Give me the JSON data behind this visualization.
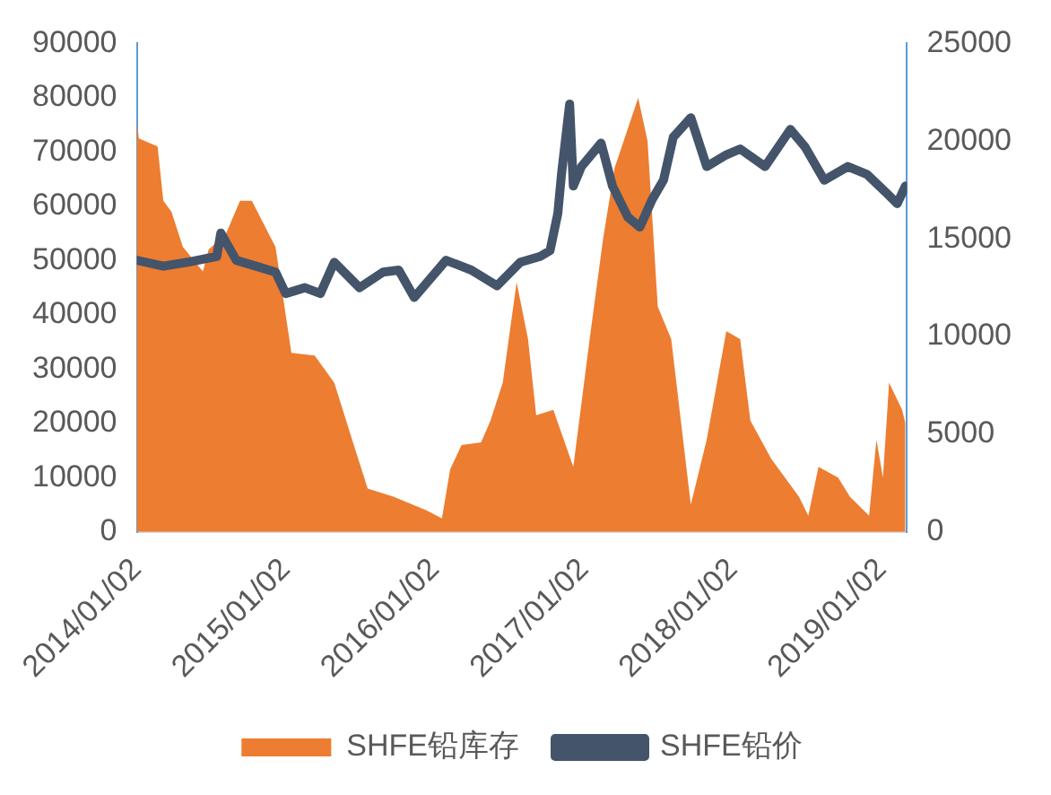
{
  "chart_data": {
    "type": "line",
    "xlim": [
      "2014-01-02",
      "2019-03-05"
    ],
    "xticks": [
      {
        "value": "2014-01-02",
        "label": "2014/01/02"
      },
      {
        "value": "2015-01-02",
        "label": "2015/01/02"
      },
      {
        "value": "2016-01-02",
        "label": "2016/01/02"
      },
      {
        "value": "2017-01-02",
        "label": "2017/01/02"
      },
      {
        "value": "2018-01-02",
        "label": "2018/01/02"
      },
      {
        "value": "2019-01-02",
        "label": "2019/01/02"
      }
    ],
    "ylim": [
      0,
      90000
    ],
    "yticks": [
      0,
      10000,
      20000,
      30000,
      40000,
      50000,
      60000,
      70000,
      80000,
      90000
    ],
    "y2lim": [
      0,
      25000
    ],
    "y2ticks": [
      0,
      5000,
      10000,
      15000,
      20000,
      25000
    ],
    "legend": "bottom",
    "series": [
      {
        "name": "SHFE铅库存",
        "type": "area",
        "color": "#ed7d31",
        "x": [
          "2014-01-02",
          "2014-01-07",
          "2014-02-22",
          "2014-03-08",
          "2014-03-28",
          "2014-04-25",
          "2014-06-13",
          "2014-06-27",
          "2014-08-09",
          "2014-09-12",
          "2014-10-11",
          "2014-12-08",
          "2015-01-16",
          "2015-03-14",
          "2015-05-01",
          "2015-06-18",
          "2015-07-22",
          "2015-09-23",
          "2015-12-13",
          "2016-01-20",
          "2016-02-09",
          "2016-03-08",
          "2016-04-25",
          "2016-05-18",
          "2016-06-17",
          "2016-07-21",
          "2016-08-18",
          "2016-09-07",
          "2016-10-19",
          "2016-12-07",
          "2017-01-16",
          "2017-02-18",
          "2017-03-18",
          "2017-05-15",
          "2017-06-07",
          "2017-07-02",
          "2017-08-04",
          "2017-09-21",
          "2017-10-30",
          "2017-12-17",
          "2018-01-20",
          "2018-02-14",
          "2018-04-06",
          "2018-06-13",
          "2018-07-06",
          "2018-07-31",
          "2018-09-17",
          "2018-10-16",
          "2018-12-02",
          "2018-12-20",
          "2019-01-05",
          "2019-01-20",
          "2019-02-21",
          "2019-03-01"
        ],
        "values": [
          76000,
          72500,
          71000,
          61000,
          59000,
          52500,
          48000,
          52000,
          55000,
          61000,
          61000,
          52500,
          33000,
          32500,
          27500,
          16000,
          8000,
          6500,
          4000,
          2500,
          11500,
          16000,
          16500,
          20500,
          27500,
          46000,
          35500,
          21500,
          22500,
          12000,
          35500,
          54000,
          67000,
          80000,
          72000,
          41500,
          35500,
          5000,
          17000,
          37000,
          35500,
          20500,
          13500,
          6500,
          3000,
          12000,
          10000,
          6500,
          3000,
          17000,
          10000,
          27500,
          22500,
          20000
        ]
      },
      {
        "name": "SHFE铅价",
        "type": "line",
        "axis": "y2",
        "color": "#44546a",
        "x": [
          "2014-01-02",
          "2014-03-08",
          "2014-05-06",
          "2014-07-17",
          "2014-07-27",
          "2014-09-03",
          "2014-10-21",
          "2014-12-08",
          "2015-01-02",
          "2015-02-18",
          "2015-03-28",
          "2015-05-01",
          "2015-07-02",
          "2015-08-29",
          "2015-10-06",
          "2015-11-13",
          "2016-01-30",
          "2016-04-01",
          "2016-06-03",
          "2016-07-30",
          "2016-09-17",
          "2016-10-11",
          "2016-10-30",
          "2016-11-08",
          "2016-11-28",
          "2016-12-07",
          "2016-12-27",
          "2017-02-13",
          "2017-03-13",
          "2017-04-20",
          "2017-05-19",
          "2017-06-18",
          "2017-07-16",
          "2017-08-09",
          "2017-09-21",
          "2017-10-30",
          "2017-12-17",
          "2018-01-20",
          "2018-03-22",
          "2018-05-23",
          "2018-06-28",
          "2018-08-14",
          "2018-10-11",
          "2018-11-27",
          "2019-01-16",
          "2019-02-09",
          "2019-03-01"
        ],
        "values": [
          13900,
          13600,
          13800,
          14100,
          15300,
          13900,
          13600,
          13300,
          12200,
          12500,
          12200,
          13800,
          12500,
          13300,
          13400,
          12000,
          13900,
          13400,
          12600,
          13800,
          14100,
          14400,
          16300,
          18300,
          21900,
          17700,
          18700,
          19900,
          17700,
          16100,
          15600,
          17000,
          18000,
          20200,
          21200,
          18700,
          19300,
          19600,
          18700,
          20600,
          19700,
          18000,
          18700,
          18300,
          17300,
          16800,
          17700
        ]
      }
    ]
  }
}
